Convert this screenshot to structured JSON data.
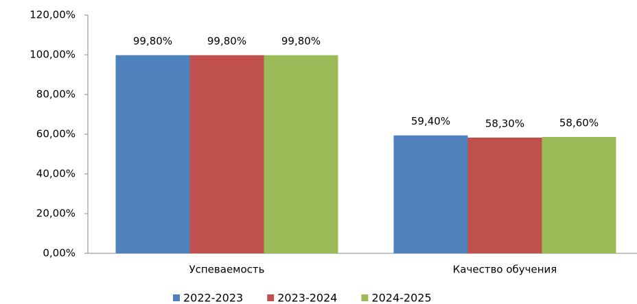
{
  "chart_data": {
    "type": "bar",
    "categories": [
      "Успеваемость",
      "Качество обучения"
    ],
    "series": [
      {
        "name": "2022-2023",
        "color": "#4f81bd",
        "values": [
          99.8,
          59.4
        ],
        "value_labels": [
          "99,80%",
          "59,40%"
        ]
      },
      {
        "name": "2023-2024",
        "color": "#c0504d",
        "values": [
          99.8,
          58.3
        ],
        "value_labels": [
          "99,80%",
          "58,30%"
        ]
      },
      {
        "name": "2024-2025",
        "color": "#9bbb59",
        "values": [
          99.8,
          58.6
        ],
        "value_labels": [
          "99,80%",
          "58,60%"
        ]
      }
    ],
    "ylim": [
      0,
      120
    ],
    "yticks": [
      {
        "value": 0,
        "label": "0,00%"
      },
      {
        "value": 20,
        "label": "20,00%"
      },
      {
        "value": 40,
        "label": "40,00%"
      },
      {
        "value": 60,
        "label": "60,00%"
      },
      {
        "value": 80,
        "label": "80,00%"
      },
      {
        "value": 100,
        "label": "100,00%"
      },
      {
        "value": 120,
        "label": "120,00%"
      }
    ],
    "grid": false,
    "legend": "bottom"
  }
}
